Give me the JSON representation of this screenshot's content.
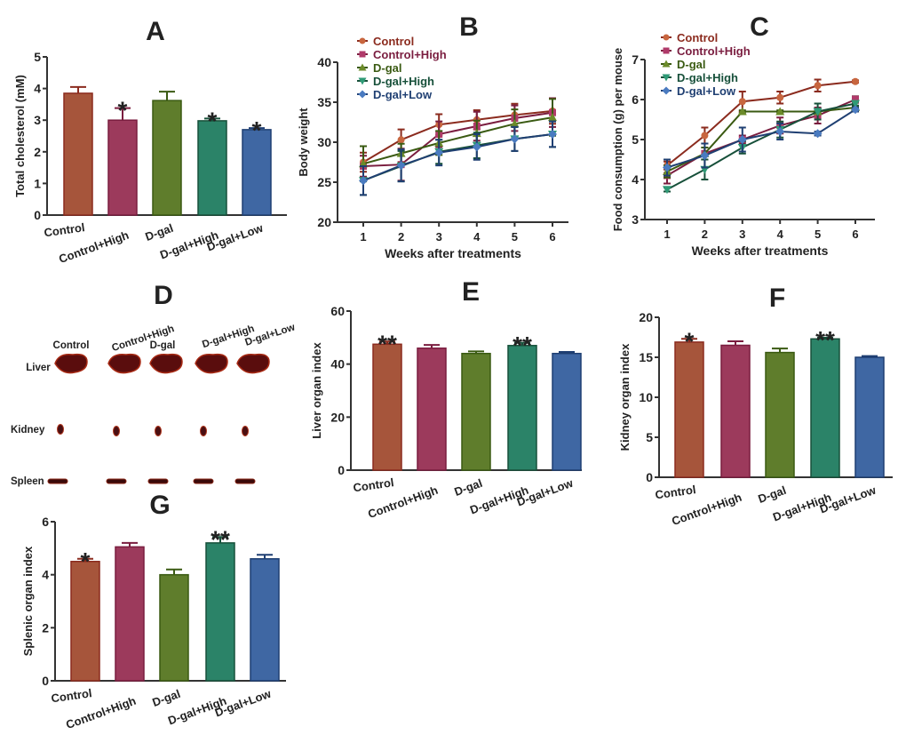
{
  "groups": [
    "Control",
    "Control+High",
    "D-gal",
    "D-gal+High",
    "D-gal+Low"
  ],
  "colors": {
    "bar": [
      "#a6553b",
      "#9c3a5c",
      "#5f7d2c",
      "#2b8368",
      "#3f67a3"
    ],
    "line": [
      "#8b2b1e",
      "#7a1d3f",
      "#3a5a12",
      "#17503a",
      "#1f3f72"
    ],
    "marker": [
      "#c8663f",
      "#b03a6a",
      "#6b8b2a",
      "#2f9a76",
      "#4a7bc0"
    ]
  },
  "chart_data": [
    {
      "panel": "A",
      "type": "bar",
      "ylabel": "Total cholesterol (mM)",
      "ylim": [
        0,
        5
      ],
      "yticks": [
        0,
        1,
        2,
        3,
        4,
        5
      ],
      "values": [
        3.85,
        3.0,
        3.62,
        2.98,
        2.7
      ],
      "errors": [
        0.2,
        0.38,
        0.28,
        0.07,
        0.05
      ],
      "annotations": [
        "",
        "*",
        "",
        "*",
        "*"
      ]
    },
    {
      "panel": "B",
      "type": "line",
      "xlabel": "Weeks after treatments",
      "ylabel": "Body weight",
      "ylim": [
        20,
        40
      ],
      "yticks": [
        20,
        25,
        30,
        35,
        40
      ],
      "x": [
        1,
        2,
        3,
        4,
        5,
        6
      ],
      "legend": "top-left",
      "series": [
        {
          "name": "Control",
          "marker": "circle",
          "values": [
            27.5,
            30.3,
            32.2,
            32.8,
            33.4,
            33.9
          ],
          "errors": [
            1.2,
            1.3,
            1.3,
            1.2,
            1.4,
            1.6
          ]
        },
        {
          "name": "Control+High",
          "marker": "square",
          "values": [
            27.0,
            27.2,
            31.0,
            32.0,
            33.0,
            33.7
          ],
          "errors": [
            1.3,
            2.0,
            1.6,
            1.8,
            1.6,
            1.8
          ]
        },
        {
          "name": "D-gal",
          "marker": "triangle",
          "values": [
            27.3,
            28.6,
            29.9,
            31.1,
            32.3,
            33.1
          ],
          "errors": [
            2.2,
            1.2,
            1.5,
            1.6,
            1.8,
            2.3
          ]
        },
        {
          "name": "D-gal+High",
          "marker": "triangle-down",
          "values": [
            25.2,
            27.0,
            28.8,
            29.6,
            30.4,
            31.0
          ],
          "errors": [
            1.8,
            1.9,
            1.5,
            1.6,
            1.5,
            1.6
          ]
        },
        {
          "name": "D-gal+Low",
          "marker": "diamond",
          "values": [
            25.2,
            27.1,
            28.7,
            29.4,
            30.4,
            31.0
          ],
          "errors": [
            1.8,
            2.0,
            1.6,
            1.6,
            1.5,
            1.6
          ]
        }
      ]
    },
    {
      "panel": "C",
      "type": "line",
      "xlabel": "Weeks after treatments",
      "ylabel": "Food consumption (g) per mouse",
      "ylim": [
        3,
        7
      ],
      "yticks": [
        3,
        4,
        5,
        6,
        7
      ],
      "x": [
        1,
        2,
        3,
        4,
        5,
        6
      ],
      "legend": "top-left",
      "series": [
        {
          "name": "Control",
          "marker": "circle",
          "values": [
            4.35,
            5.1,
            5.95,
            6.05,
            6.35,
            6.45
          ],
          "errors": [
            0.1,
            0.2,
            0.25,
            0.15,
            0.15,
            0.03
          ]
        },
        {
          "name": "Control+High",
          "marker": "square",
          "values": [
            4.1,
            4.65,
            5.0,
            5.35,
            5.6,
            6.0
          ],
          "errors": [
            0.2,
            0.15,
            0.1,
            0.2,
            0.2,
            0.08
          ]
        },
        {
          "name": "D-gal",
          "marker": "triangle",
          "values": [
            4.2,
            4.65,
            5.7,
            5.7,
            5.7,
            5.8
          ],
          "errors": [
            0.15,
            0.15,
            0.03,
            0.03,
            0.03,
            0.03
          ]
        },
        {
          "name": "D-gal+High",
          "marker": "triangle-down",
          "values": [
            3.75,
            4.25,
            4.8,
            5.25,
            5.7,
            5.9
          ],
          "errors": [
            0.05,
            0.25,
            0.15,
            0.2,
            0.2,
            0.05
          ]
        },
        {
          "name": "D-gal+Low",
          "marker": "diamond",
          "values": [
            4.3,
            4.6,
            5.0,
            5.2,
            5.15,
            5.75
          ],
          "errors": [
            0.2,
            0.3,
            0.3,
            0.2,
            0.05,
            0.05
          ]
        }
      ]
    },
    {
      "panel": "E",
      "type": "bar",
      "ylabel": "Liver organ index",
      "ylim": [
        0,
        60
      ],
      "yticks": [
        0,
        20,
        40,
        60
      ],
      "values": [
        47.5,
        46.0,
        44.0,
        47.0,
        44.0
      ],
      "errors": [
        1.0,
        1.2,
        0.8,
        1.0,
        0.6
      ],
      "annotations": [
        "**",
        "",
        "",
        "**",
        ""
      ]
    },
    {
      "panel": "F",
      "type": "bar",
      "ylabel": "Kidney organ index",
      "ylim": [
        0,
        20
      ],
      "yticks": [
        0,
        5,
        10,
        15,
        20
      ],
      "values": [
        16.9,
        16.5,
        15.6,
        17.3,
        15.0
      ],
      "errors": [
        0.4,
        0.5,
        0.5,
        0.15,
        0.15
      ],
      "annotations": [
        "*",
        "",
        "",
        "**",
        ""
      ]
    },
    {
      "panel": "G",
      "type": "bar",
      "ylabel": "Splenic organ index",
      "ylim": [
        0,
        6
      ],
      "yticks": [
        0,
        2,
        4,
        6
      ],
      "values": [
        4.5,
        5.05,
        4.0,
        5.2,
        4.6
      ],
      "errors": [
        0.1,
        0.15,
        0.2,
        0.22,
        0.15
      ],
      "annotations": [
        "*",
        "",
        "",
        "**",
        ""
      ]
    }
  ],
  "photo_panel": {
    "panel": "D",
    "columns": [
      "Control",
      "Control+High",
      "D-gal",
      "D-gal+High",
      "D-gal+Low"
    ],
    "rows": [
      "Liver",
      "Kidney",
      "Spleen"
    ]
  }
}
